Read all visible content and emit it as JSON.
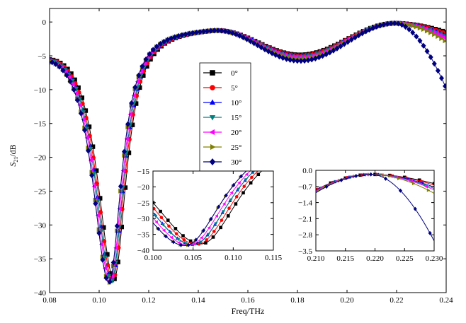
{
  "chart_data": [
    {
      "id": "main",
      "type": "line",
      "title": "",
      "xlabel": "Freq/THz",
      "ylabel_main": "S",
      "ylabel_sub": "21",
      "ylabel_suffix": "/dB",
      "xlim": [
        0.08,
        0.24
      ],
      "ylim": [
        -40,
        2
      ],
      "xticks": [
        0.08,
        0.1,
        0.12,
        0.14,
        0.16,
        0.18,
        0.2,
        0.22,
        0.24
      ],
      "xtick_labels": [
        "0.08",
        "0.10",
        "0.12",
        "0.14",
        "0.16",
        "0.18",
        "0.20",
        "0.22",
        "0.24"
      ],
      "yticks": [
        0,
        -5,
        -10,
        -15,
        -20,
        -25,
        -30,
        -35,
        -40
      ],
      "ytick_labels": [
        "0",
        "−5",
        "−10",
        "−15",
        "−20",
        "−25",
        "−30",
        "−35",
        "−40"
      ],
      "grid": false,
      "legend_position": "center-left",
      "series": [
        {
          "name": "0°",
          "color": "#000000",
          "marker": "square",
          "null_freq": 0.106,
          "null_depth": -37.5,
          "peak1_freq": 0.147,
          "peak1_val": -1.1,
          "min2_freq": 0.181,
          "min2_val": -4.8,
          "peak2_freq": 0.2195,
          "peak2_val": -0.15,
          "end_val": -1.5
        },
        {
          "name": "5°",
          "color": "#ff0000",
          "marker": "circle",
          "null_freq": 0.1055,
          "null_depth": -37.6,
          "peak1_freq": 0.147,
          "peak1_val": -1.1,
          "min2_freq": 0.181,
          "min2_val": -4.9,
          "peak2_freq": 0.2195,
          "peak2_val": -0.15,
          "end_val": -1.7
        },
        {
          "name": "10°",
          "color": "#0000ff",
          "marker": "triangle-up",
          "null_freq": 0.105,
          "null_depth": -37.7,
          "peak1_freq": 0.147,
          "peak1_val": -1.1,
          "min2_freq": 0.181,
          "min2_val": -5.0,
          "peak2_freq": 0.2195,
          "peak2_val": -0.15,
          "end_val": -2.0
        },
        {
          "name": "15°",
          "color": "#008080",
          "marker": "triangle-down",
          "null_freq": 0.105,
          "null_depth": -37.8,
          "peak1_freq": 0.147,
          "peak1_val": -1.1,
          "min2_freq": 0.181,
          "min2_val": -5.1,
          "peak2_freq": 0.2195,
          "peak2_val": -0.15,
          "end_val": -2.2
        },
        {
          "name": "20°",
          "color": "#ff00ff",
          "marker": "triangle-left",
          "null_freq": 0.1045,
          "null_depth": -37.9,
          "peak1_freq": 0.147,
          "peak1_val": -1.1,
          "min2_freq": 0.181,
          "min2_val": -5.2,
          "peak2_freq": 0.2195,
          "peak2_val": -0.15,
          "end_val": -2.4
        },
        {
          "name": "25°",
          "color": "#808000",
          "marker": "triangle-right",
          "null_freq": 0.104,
          "null_depth": -38.0,
          "peak1_freq": 0.147,
          "peak1_val": -1.1,
          "min2_freq": 0.181,
          "min2_val": -5.4,
          "peak2_freq": 0.2195,
          "peak2_val": -0.15,
          "end_val": -2.9
        },
        {
          "name": "30°",
          "color": "#000080",
          "marker": "diamond",
          "null_freq": 0.104,
          "null_depth": -38.0,
          "peak1_freq": 0.147,
          "peak1_val": -1.1,
          "min2_freq": 0.181,
          "min2_val": -5.7,
          "peak2_freq": 0.2195,
          "peak2_val": -0.15,
          "end_val": -9.8
        }
      ]
    },
    {
      "id": "inset-1",
      "type": "line",
      "title": "",
      "xlim": [
        0.1,
        0.115
      ],
      "ylim": [
        -40,
        -15
      ],
      "xticks": [
        0.1,
        0.105,
        0.11,
        0.115
      ],
      "xtick_labels": [
        "0.100",
        "0.105",
        "0.110",
        "0.115"
      ],
      "yticks": [
        -15,
        -20,
        -25,
        -30,
        -35,
        -40
      ],
      "ytick_labels": [
        "−15",
        "−20",
        "−25",
        "−30",
        "−35",
        "−40"
      ],
      "grid": false,
      "series_ref": "main"
    },
    {
      "id": "inset-2",
      "type": "line",
      "title": "",
      "xlim": [
        0.21,
        0.23
      ],
      "ylim": [
        -3.5,
        0.0
      ],
      "xticks": [
        0.21,
        0.215,
        0.22,
        0.225,
        0.23
      ],
      "xtick_labels": [
        "0.210",
        "0.215",
        "0.220",
        "0.225",
        "0.230"
      ],
      "yticks": [
        0.0,
        -0.7,
        -1.4,
        -2.1,
        -2.8,
        -3.5
      ],
      "ytick_labels": [
        "0.0",
        "−0.7",
        "−1.4",
        "−2.1",
        "−2.8",
        "−3.5"
      ],
      "grid": false,
      "series_ref": "main"
    }
  ]
}
